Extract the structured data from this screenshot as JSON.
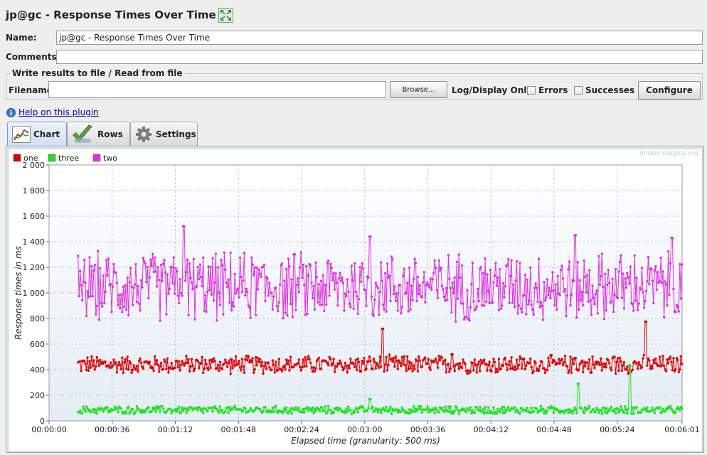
{
  "window": {
    "title": "jp@gc - Response Times Over Time"
  },
  "form": {
    "name_label": "Name:",
    "name_value": "jp@gc - Response Times Over Time",
    "comments_label": "Comments:",
    "comments_value": "",
    "file_section_label": "Write results to file / Read from file",
    "filename_label": "Filename",
    "filename_value": "",
    "browse_label": "Browse...",
    "log_display_label": "Log/Display Only:",
    "errors_label": "Errors",
    "successes_label": "Successes",
    "configure_label": "Configure"
  },
  "help": {
    "link_text": "Help on this plugin",
    "icon": "info-icon"
  },
  "tabs": [
    {
      "label": "Chart",
      "icon": "chart-icon",
      "active": true
    },
    {
      "label": "Rows",
      "icon": "checkmark-icon",
      "active": false
    },
    {
      "label": "Settings",
      "icon": "gear-icon",
      "active": false
    }
  ],
  "chart_data": {
    "type": "line",
    "watermark": "jmeter-plugins.org",
    "xlabel": "Elapsed time (granularity: 500 ms)",
    "ylabel": "Response times in ms",
    "x_unit": "seconds",
    "xlim": [
      0,
      361
    ],
    "ylim": [
      0,
      2000
    ],
    "x_ticks": [
      0,
      36,
      72,
      108,
      144,
      180,
      216,
      252,
      288,
      324,
      361
    ],
    "x_tick_labels": [
      "00:00:00",
      "00:00:36",
      "00:01:12",
      "00:01:48",
      "00:02:24",
      "00:03:00",
      "00:03:36",
      "00:04:12",
      "00:04:48",
      "00:05:24",
      "00:06:01"
    ],
    "y_ticks": [
      0,
      200,
      400,
      600,
      800,
      1000,
      1200,
      1400,
      1600,
      1800,
      2000
    ],
    "y_tick_labels": [
      "0",
      "200",
      "400",
      "600",
      "800",
      "1 000",
      "1 200",
      "1 400",
      "1 600",
      "1 800",
      "2 000"
    ],
    "grid": true,
    "legend_position": "top-left",
    "granularity_s": 0.5,
    "x_start": 16.5,
    "x_end": 361,
    "series": [
      {
        "name": "one",
        "color": "#e00000",
        "typical_range": [
          360,
          520
        ],
        "spikes": [
          [
            190,
            720
          ],
          [
            340,
            775
          ],
          [
            230,
            520
          ],
          [
            300,
            490
          ],
          [
            322,
            500
          ]
        ]
      },
      {
        "name": "three",
        "color": "#22e022",
        "typical_range": [
          50,
          120
        ],
        "spikes": [
          [
            183,
            170
          ],
          [
            302,
            290
          ],
          [
            331,
            430
          ]
        ]
      },
      {
        "name": "two",
        "color": "#e030e0",
        "typical_range": [
          750,
          1350
        ],
        "spikes": [
          [
            77,
            1520
          ],
          [
            183,
            1440
          ],
          [
            300,
            1450
          ],
          [
            355,
            1430
          ]
        ]
      }
    ]
  }
}
